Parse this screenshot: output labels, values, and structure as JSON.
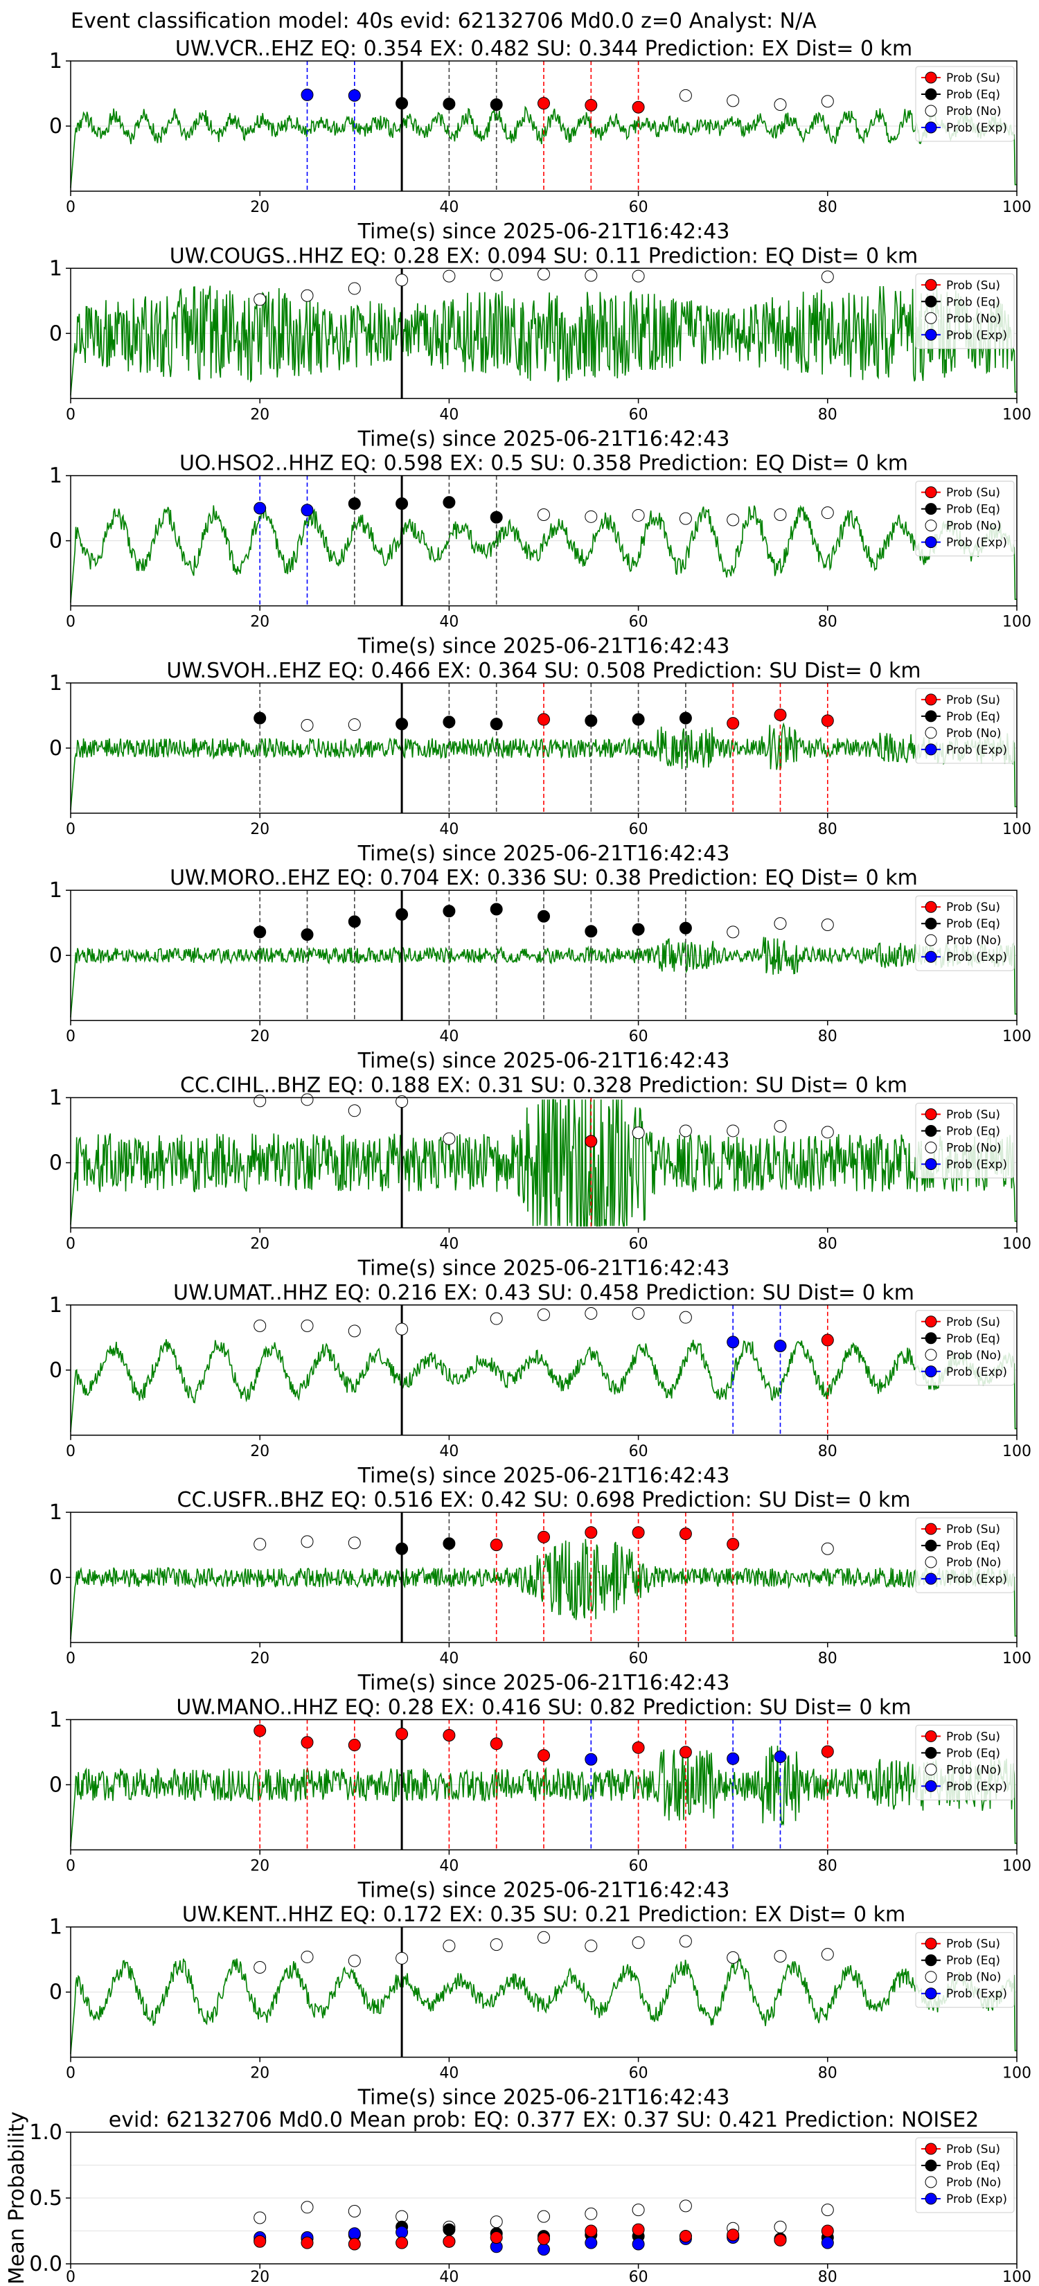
{
  "suptitle": "Event classification model: 40s evid: 62132706 Md0.0 z=0 Analyst: N/A",
  "chart_data": {
    "type": "line",
    "xlabel": "Time(s) since 2025-06-21T16:42:43",
    "xlim": [
      0,
      100
    ],
    "xticks": [
      "0",
      "20",
      "40",
      "60",
      "80",
      "100"
    ],
    "ylim": [
      -1,
      1
    ],
    "yticks": [
      "1",
      "0"
    ],
    "origin_time_s": 35,
    "waveform_color": "#008000",
    "legend": {
      "position": "top-right",
      "entries": [
        {
          "label": "Prob (Su)",
          "key": "su",
          "color": "#ff0000"
        },
        {
          "label": "Prob (Eq)",
          "key": "eq",
          "color": "#000000"
        },
        {
          "label": "Prob (No)",
          "key": "no",
          "color": "#ffffff"
        },
        {
          "label": "Prob (Exp)",
          "key": "ex",
          "color": "#0000ff"
        }
      ]
    },
    "class_colors": {
      "su": "#ff0000",
      "eq": "#000000",
      "no": "#ffffff",
      "ex": "#0000ff"
    },
    "window_times": [
      20,
      25,
      30,
      35,
      40,
      45,
      50,
      55,
      60,
      65,
      70,
      75,
      80
    ],
    "panels": [
      {
        "title": "UW.VCR..EHZ   EQ: 0.354  EX: 0.482  SU: 0.344   Prediction: EX    Dist= 0 km",
        "style": "mid",
        "amp": 0.4,
        "points": [
          {
            "x": 25,
            "y": 0.48,
            "cls": "ex",
            "line": true
          },
          {
            "x": 30,
            "y": 0.47,
            "cls": "ex",
            "line": true
          },
          {
            "x": 35,
            "y": 0.35,
            "cls": "eq",
            "line": false
          },
          {
            "x": 40,
            "y": 0.34,
            "cls": "eq",
            "line": true
          },
          {
            "x": 45,
            "y": 0.33,
            "cls": "eq",
            "line": true
          },
          {
            "x": 50,
            "y": 0.35,
            "cls": "su",
            "line": true
          },
          {
            "x": 55,
            "y": 0.32,
            "cls": "su",
            "line": true
          },
          {
            "x": 60,
            "y": 0.29,
            "cls": "su",
            "line": true
          },
          {
            "x": 65,
            "y": 0.47,
            "cls": "no",
            "line": false
          },
          {
            "x": 70,
            "y": 0.39,
            "cls": "no",
            "line": false
          },
          {
            "x": 75,
            "y": 0.33,
            "cls": "no",
            "line": false
          },
          {
            "x": 80,
            "y": 0.38,
            "cls": "no",
            "line": false
          }
        ]
      },
      {
        "title": "UW.COUGS..HHZ   EQ: 0.28  EX: 0.094  SU: 0.11   Prediction: EQ    Dist= 0 km",
        "style": "dense",
        "amp": 0.75,
        "points": [
          {
            "x": 20,
            "y": 0.52,
            "cls": "no",
            "line": false
          },
          {
            "x": 25,
            "y": 0.58,
            "cls": "no",
            "line": false
          },
          {
            "x": 30,
            "y": 0.69,
            "cls": "no",
            "line": false
          },
          {
            "x": 35,
            "y": 0.82,
            "cls": "no",
            "line": false
          },
          {
            "x": 40,
            "y": 0.88,
            "cls": "no",
            "line": false
          },
          {
            "x": 45,
            "y": 0.9,
            "cls": "no",
            "line": false
          },
          {
            "x": 50,
            "y": 0.91,
            "cls": "no",
            "line": false
          },
          {
            "x": 55,
            "y": 0.89,
            "cls": "no",
            "line": false
          },
          {
            "x": 60,
            "y": 0.88,
            "cls": "no",
            "line": false
          },
          {
            "x": 80,
            "y": 0.87,
            "cls": "no",
            "line": false
          }
        ]
      },
      {
        "title": "UO.HSO2..HHZ   EQ: 0.598  EX: 0.5  SU: 0.358   Prediction: EQ    Dist= 0 km",
        "style": "wave",
        "amp": 0.8,
        "points": [
          {
            "x": 20,
            "y": 0.5,
            "cls": "ex",
            "line": true
          },
          {
            "x": 25,
            "y": 0.47,
            "cls": "ex",
            "line": true
          },
          {
            "x": 30,
            "y": 0.57,
            "cls": "eq",
            "line": true
          },
          {
            "x": 35,
            "y": 0.57,
            "cls": "eq",
            "line": false
          },
          {
            "x": 40,
            "y": 0.59,
            "cls": "eq",
            "line": true
          },
          {
            "x": 45,
            "y": 0.36,
            "cls": "eq",
            "line": true
          },
          {
            "x": 50,
            "y": 0.4,
            "cls": "no",
            "line": false
          },
          {
            "x": 55,
            "y": 0.37,
            "cls": "no",
            "line": false
          },
          {
            "x": 60,
            "y": 0.39,
            "cls": "no",
            "line": false
          },
          {
            "x": 65,
            "y": 0.34,
            "cls": "no",
            "line": false
          },
          {
            "x": 70,
            "y": 0.32,
            "cls": "no",
            "line": false
          },
          {
            "x": 75,
            "y": 0.4,
            "cls": "no",
            "line": false
          },
          {
            "x": 80,
            "y": 0.43,
            "cls": "no",
            "line": false
          }
        ]
      },
      {
        "title": "UW.SVOH..EHZ   EQ: 0.466  EX: 0.364  SU: 0.508   Prediction: SU    Dist= 0 km",
        "style": "quiet",
        "amp": 0.15,
        "points": [
          {
            "x": 20,
            "y": 0.46,
            "cls": "eq",
            "line": true
          },
          {
            "x": 25,
            "y": 0.35,
            "cls": "no",
            "line": false
          },
          {
            "x": 30,
            "y": 0.36,
            "cls": "no",
            "line": false
          },
          {
            "x": 35,
            "y": 0.37,
            "cls": "eq",
            "line": false
          },
          {
            "x": 40,
            "y": 0.4,
            "cls": "eq",
            "line": true
          },
          {
            "x": 45,
            "y": 0.37,
            "cls": "eq",
            "line": true
          },
          {
            "x": 50,
            "y": 0.44,
            "cls": "su",
            "line": true
          },
          {
            "x": 55,
            "y": 0.42,
            "cls": "eq",
            "line": true
          },
          {
            "x": 60,
            "y": 0.44,
            "cls": "eq",
            "line": true
          },
          {
            "x": 65,
            "y": 0.46,
            "cls": "eq",
            "line": true
          },
          {
            "x": 70,
            "y": 0.38,
            "cls": "su",
            "line": true
          },
          {
            "x": 75,
            "y": 0.51,
            "cls": "su",
            "line": true
          },
          {
            "x": 80,
            "y": 0.42,
            "cls": "su",
            "line": true
          }
        ]
      },
      {
        "title": "UW.MORO..EHZ   EQ: 0.704  EX: 0.336  SU: 0.38   Prediction: EQ    Dist= 0 km",
        "style": "quiet",
        "amp": 0.12,
        "points": [
          {
            "x": 20,
            "y": 0.36,
            "cls": "eq",
            "line": true
          },
          {
            "x": 25,
            "y": 0.32,
            "cls": "eq",
            "line": true
          },
          {
            "x": 30,
            "y": 0.52,
            "cls": "eq",
            "line": true
          },
          {
            "x": 35,
            "y": 0.63,
            "cls": "eq",
            "line": false
          },
          {
            "x": 40,
            "y": 0.68,
            "cls": "eq",
            "line": true
          },
          {
            "x": 45,
            "y": 0.71,
            "cls": "eq",
            "line": true
          },
          {
            "x": 50,
            "y": 0.6,
            "cls": "eq",
            "line": true
          },
          {
            "x": 55,
            "y": 0.37,
            "cls": "eq",
            "line": true
          },
          {
            "x": 60,
            "y": 0.4,
            "cls": "eq",
            "line": true
          },
          {
            "x": 65,
            "y": 0.42,
            "cls": "eq",
            "line": true
          },
          {
            "x": 70,
            "y": 0.36,
            "cls": "no",
            "line": false
          },
          {
            "x": 75,
            "y": 0.49,
            "cls": "no",
            "line": false
          },
          {
            "x": 80,
            "y": 0.47,
            "cls": "no",
            "line": false
          }
        ]
      },
      {
        "title": "CC.CIHL..BHZ   EQ: 0.188  EX: 0.31  SU: 0.328   Prediction: SU    Dist= 0 km",
        "style": "burst",
        "amp": 0.45,
        "points": [
          {
            "x": 20,
            "y": 0.95,
            "cls": "no",
            "line": false
          },
          {
            "x": 25,
            "y": 0.97,
            "cls": "no",
            "line": false
          },
          {
            "x": 30,
            "y": 0.8,
            "cls": "no",
            "line": false
          },
          {
            "x": 35,
            "y": 0.94,
            "cls": "no",
            "line": false
          },
          {
            "x": 40,
            "y": 0.37,
            "cls": "no",
            "line": false
          },
          {
            "x": 55,
            "y": 0.33,
            "cls": "su",
            "line": true
          },
          {
            "x": 60,
            "y": 0.46,
            "cls": "no",
            "line": false
          },
          {
            "x": 65,
            "y": 0.49,
            "cls": "no",
            "line": false
          },
          {
            "x": 70,
            "y": 0.49,
            "cls": "no",
            "line": false
          },
          {
            "x": 75,
            "y": 0.56,
            "cls": "no",
            "line": false
          },
          {
            "x": 80,
            "y": 0.47,
            "cls": "no",
            "line": false
          }
        ]
      },
      {
        "title": "UW.UMAT..HHZ   EQ: 0.216  EX: 0.43  SU: 0.458   Prediction: SU    Dist= 0 km",
        "style": "wave",
        "amp": 0.7,
        "points": [
          {
            "x": 20,
            "y": 0.68,
            "cls": "no",
            "line": false
          },
          {
            "x": 25,
            "y": 0.68,
            "cls": "no",
            "line": false
          },
          {
            "x": 30,
            "y": 0.6,
            "cls": "no",
            "line": false
          },
          {
            "x": 35,
            "y": 0.63,
            "cls": "no",
            "line": false
          },
          {
            "x": 45,
            "y": 0.79,
            "cls": "no",
            "line": false
          },
          {
            "x": 50,
            "y": 0.85,
            "cls": "no",
            "line": false
          },
          {
            "x": 55,
            "y": 0.87,
            "cls": "no",
            "line": false
          },
          {
            "x": 60,
            "y": 0.87,
            "cls": "no",
            "line": false
          },
          {
            "x": 65,
            "y": 0.81,
            "cls": "no",
            "line": false
          },
          {
            "x": 70,
            "y": 0.43,
            "cls": "ex",
            "line": true
          },
          {
            "x": 75,
            "y": 0.37,
            "cls": "ex",
            "line": true
          },
          {
            "x": 80,
            "y": 0.46,
            "cls": "su",
            "line": true
          }
        ]
      },
      {
        "title": "CC.USFR..BHZ   EQ: 0.516  EX: 0.42  SU: 0.698   Prediction: SU    Dist= 0 km",
        "style": "burst",
        "amp": 0.15,
        "points": [
          {
            "x": 20,
            "y": 0.51,
            "cls": "no",
            "line": false
          },
          {
            "x": 25,
            "y": 0.55,
            "cls": "no",
            "line": false
          },
          {
            "x": 30,
            "y": 0.53,
            "cls": "no",
            "line": false
          },
          {
            "x": 35,
            "y": 0.44,
            "cls": "eq",
            "line": false
          },
          {
            "x": 40,
            "y": 0.52,
            "cls": "eq",
            "line": true
          },
          {
            "x": 45,
            "y": 0.5,
            "cls": "su",
            "line": true
          },
          {
            "x": 50,
            "y": 0.62,
            "cls": "su",
            "line": true
          },
          {
            "x": 55,
            "y": 0.69,
            "cls": "su",
            "line": true
          },
          {
            "x": 60,
            "y": 0.69,
            "cls": "su",
            "line": true
          },
          {
            "x": 65,
            "y": 0.67,
            "cls": "su",
            "line": true
          },
          {
            "x": 70,
            "y": 0.51,
            "cls": "su",
            "line": true
          },
          {
            "x": 80,
            "y": 0.44,
            "cls": "no",
            "line": false
          }
        ]
      },
      {
        "title": "UW.MANO..HHZ   EQ: 0.28  EX: 0.416  SU: 0.82   Prediction: SU    Dist= 0 km",
        "style": "quiet",
        "amp": 0.25,
        "points": [
          {
            "x": 20,
            "y": 0.83,
            "cls": "su",
            "line": true
          },
          {
            "x": 25,
            "y": 0.65,
            "cls": "su",
            "line": true
          },
          {
            "x": 30,
            "y": 0.61,
            "cls": "su",
            "line": true
          },
          {
            "x": 35,
            "y": 0.78,
            "cls": "su",
            "line": false
          },
          {
            "x": 40,
            "y": 0.76,
            "cls": "su",
            "line": true
          },
          {
            "x": 45,
            "y": 0.63,
            "cls": "su",
            "line": true
          },
          {
            "x": 50,
            "y": 0.45,
            "cls": "su",
            "line": true
          },
          {
            "x": 55,
            "y": 0.39,
            "cls": "ex",
            "line": true
          },
          {
            "x": 60,
            "y": 0.57,
            "cls": "su",
            "line": true
          },
          {
            "x": 65,
            "y": 0.5,
            "cls": "su",
            "line": true
          },
          {
            "x": 70,
            "y": 0.4,
            "cls": "ex",
            "line": true
          },
          {
            "x": 75,
            "y": 0.43,
            "cls": "ex",
            "line": true
          },
          {
            "x": 80,
            "y": 0.51,
            "cls": "su",
            "line": true
          }
        ]
      },
      {
        "title": "UW.KENT..HHZ   EQ: 0.172  EX: 0.35  SU: 0.21   Prediction: EX    Dist= 0 km",
        "style": "wave",
        "amp": 0.75,
        "points": [
          {
            "x": 20,
            "y": 0.38,
            "cls": "no",
            "line": false
          },
          {
            "x": 25,
            "y": 0.54,
            "cls": "no",
            "line": false
          },
          {
            "x": 30,
            "y": 0.48,
            "cls": "no",
            "line": false
          },
          {
            "x": 35,
            "y": 0.52,
            "cls": "no",
            "line": false
          },
          {
            "x": 40,
            "y": 0.71,
            "cls": "no",
            "line": false
          },
          {
            "x": 45,
            "y": 0.73,
            "cls": "no",
            "line": false
          },
          {
            "x": 50,
            "y": 0.84,
            "cls": "no",
            "line": false
          },
          {
            "x": 55,
            "y": 0.71,
            "cls": "no",
            "line": false
          },
          {
            "x": 60,
            "y": 0.76,
            "cls": "no",
            "line": false
          },
          {
            "x": 65,
            "y": 0.78,
            "cls": "no",
            "line": false
          },
          {
            "x": 70,
            "y": 0.53,
            "cls": "no",
            "line": false
          },
          {
            "x": 75,
            "y": 0.55,
            "cls": "no",
            "line": false
          },
          {
            "x": 80,
            "y": 0.58,
            "cls": "no",
            "line": false
          }
        ]
      }
    ],
    "summary": {
      "title": "evid: 62132706  Md0.0   Mean prob:   EQ: 0.377  EX: 0.37  SU: 0.421   Prediction: NOISE2",
      "ylabel": "Mean Probability",
      "ylim": [
        0,
        1
      ],
      "yticks": [
        "0.0",
        "0.5",
        "1.0"
      ],
      "series": [
        {
          "name": "Prob (No)",
          "cls": "no",
          "values": [
            0.35,
            0.43,
            0.4,
            0.36,
            0.28,
            0.32,
            0.36,
            0.38,
            0.41,
            0.44,
            0.27,
            0.28,
            0.41
          ]
        },
        {
          "name": "Prob (Eq)",
          "cls": "eq",
          "values": [
            0.18,
            0.19,
            0.22,
            0.28,
            0.26,
            0.23,
            0.21,
            0.22,
            0.21,
            0.21,
            0.21,
            0.19,
            0.2
          ]
        },
        {
          "name": "Prob (Exp)",
          "cls": "ex",
          "values": [
            0.2,
            0.2,
            0.23,
            0.24,
            0.17,
            0.13,
            0.11,
            0.16,
            0.15,
            0.19,
            0.2,
            0.18,
            0.16
          ]
        },
        {
          "name": "Prob (Su)",
          "cls": "su",
          "values": [
            0.17,
            0.16,
            0.15,
            0.16,
            0.17,
            0.2,
            0.19,
            0.25,
            0.26,
            0.21,
            0.22,
            0.18,
            0.25
          ]
        }
      ]
    }
  }
}
